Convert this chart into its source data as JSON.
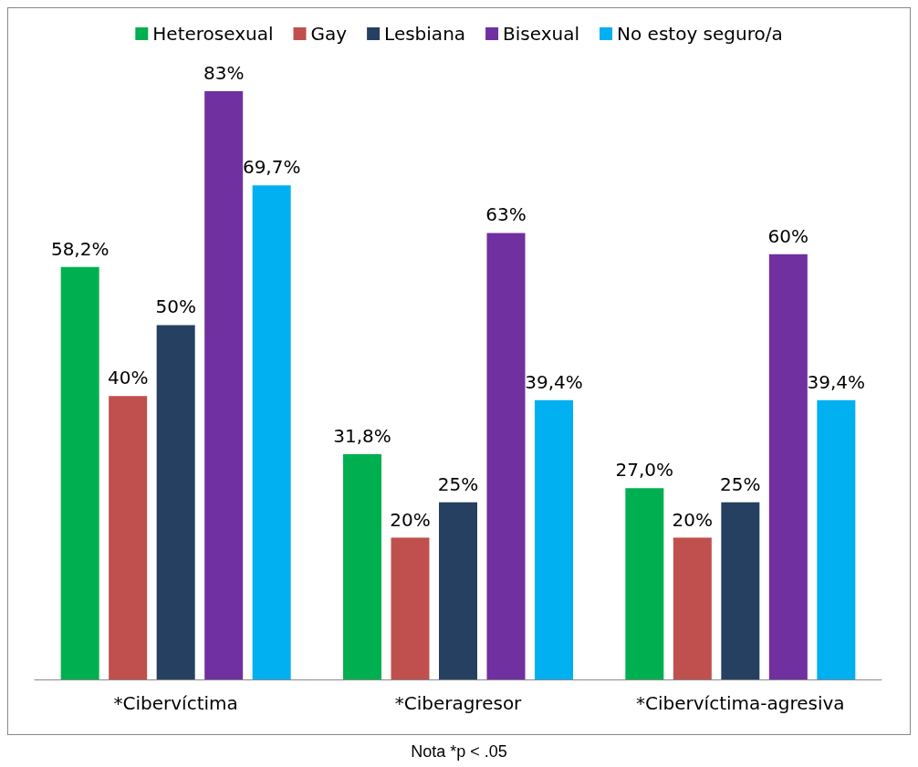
{
  "chart_data": {
    "type": "bar",
    "categories": [
      "*Cibervíctima",
      "*Ciberagresor",
      "*Cibervíctima-agresiva"
    ],
    "series": [
      {
        "name": "Heterosexual",
        "color": "#00b050",
        "values": [
          58.2,
          31.8,
          27.0
        ],
        "value_labels": [
          "58,2%",
          "31,8%",
          "27,0%"
        ]
      },
      {
        "name": "Gay",
        "color": "#c0504d",
        "values": [
          40,
          20,
          20
        ],
        "value_labels": [
          "40%",
          "20%",
          "20%"
        ]
      },
      {
        "name": "Lesbiana",
        "color": "#254061",
        "values": [
          50,
          25,
          25
        ],
        "value_labels": [
          "50%",
          "25%",
          "25%"
        ]
      },
      {
        "name": "Bisexual",
        "color": "#7030a0",
        "values": [
          83,
          63,
          60
        ],
        "value_labels": [
          "83%",
          "63%",
          "60%"
        ]
      },
      {
        "name": "No estoy seguro/a",
        "color": "#00b0f0",
        "values": [
          69.7,
          39.4,
          39.4
        ],
        "value_labels": [
          "69,7%",
          "39,4%",
          "39,4%"
        ]
      }
    ],
    "legend": "top",
    "grid": false,
    "annotations": [
      "Nota *p < .05"
    ]
  }
}
